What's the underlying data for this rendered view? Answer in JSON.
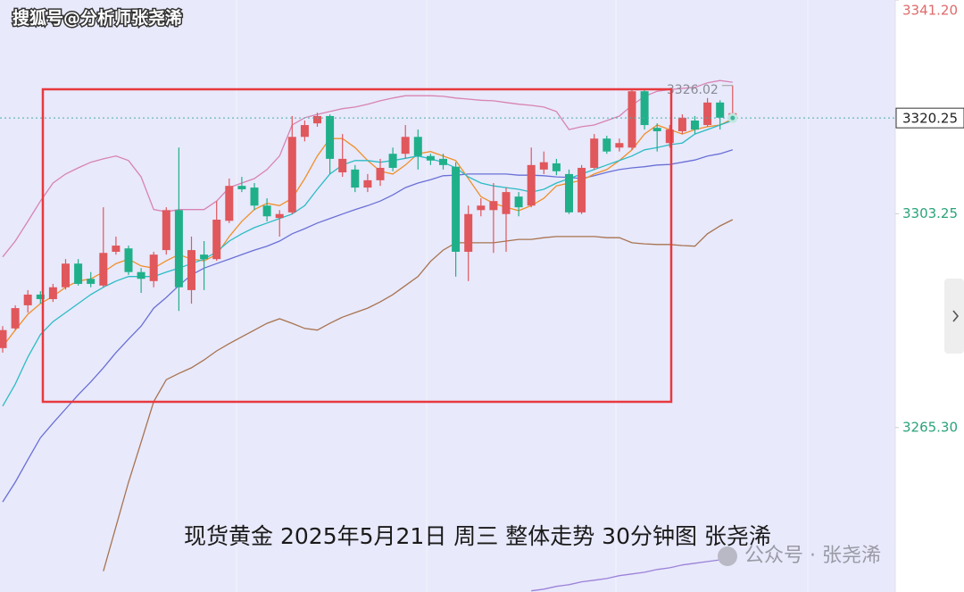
{
  "header": {
    "watermark": "搜狐号@分析师张尧浠"
  },
  "chart_data": {
    "type": "candlestick",
    "caption": "现货黄金 2025年5月21日 周三 整体走势 30分钟图 张尧浠",
    "ylim": [
      3236.1,
      3341.2
    ],
    "yticks": [
      {
        "value": 3341.2,
        "label": "3341.20"
      },
      {
        "value": 3303.25,
        "label": "3303.25"
      },
      {
        "value": 3265.3,
        "label": "3265.30"
      }
    ],
    "last_price": 3320.25,
    "annotation": "3326.02",
    "up_color": "#e0575c",
    "down_color": "#1fb08a",
    "candles": {
      "open": [
        3279.4,
        3282.9,
        3287.0,
        3288.9,
        3288.1,
        3290.2,
        3294.4,
        3291.7,
        3290.5,
        3296.5,
        3297.1,
        3292.9,
        3291.3,
        3296.8,
        3303.9,
        3289.7,
        3296.0,
        3295.2,
        3302.0,
        3308.2,
        3307.9,
        3304.7,
        3302.5,
        3303.5,
        3316.9,
        3319.3,
        3320.6,
        3310.6,
        3311.1,
        3307.9,
        3309.2,
        3313.9,
        3313.9,
        3316.9,
        3313.5,
        3313.0,
        3311.6,
        3296.5,
        3303.9,
        3303.9,
        3303.2,
        3306.3,
        3304.7,
        3311.1,
        3312.2,
        3310.3,
        3303.5,
        3311.4,
        3316.6,
        3315.0,
        3315.0,
        3325.0,
        3318.5,
        3315.8,
        3317.9,
        3319.8,
        3319.0,
        3323.0,
        3320.6
      ],
      "high": [
        3283.3,
        3287.0,
        3289.7,
        3289.5,
        3290.8,
        3295.2,
        3295.2,
        3292.9,
        3304.4,
        3299.2,
        3297.6,
        3293.6,
        3296.5,
        3304.4,
        3315.0,
        3299.2,
        3298.4,
        3305.5,
        3309.5,
        3309.8,
        3308.7,
        3306.0,
        3303.9,
        3320.6,
        3319.8,
        3321.2,
        3320.9,
        3317.4,
        3311.9,
        3310.3,
        3313.0,
        3315.0,
        3319.0,
        3318.2,
        3313.9,
        3313.9,
        3312.4,
        3304.7,
        3306.0,
        3308.7,
        3307.9,
        3307.1,
        3315.0,
        3314.3,
        3313.0,
        3311.1,
        3311.9,
        3317.4,
        3317.1,
        3316.6,
        3325.3,
        3325.3,
        3319.3,
        3319.0,
        3320.9,
        3320.6,
        3323.8,
        3323.4,
        3326.02
      ],
      "low": [
        3278.6,
        3282.6,
        3285.7,
        3287.3,
        3287.6,
        3289.8,
        3290.5,
        3290.2,
        3290.2,
        3296.0,
        3292.4,
        3289.2,
        3290.2,
        3296.0,
        3286.0,
        3287.3,
        3289.7,
        3294.9,
        3301.6,
        3307.1,
        3303.9,
        3301.9,
        3299.2,
        3303.2,
        3316.1,
        3318.7,
        3310.3,
        3309.8,
        3307.1,
        3307.1,
        3308.2,
        3310.8,
        3313.0,
        3311.1,
        3311.9,
        3311.1,
        3292.1,
        3291.3,
        3302.8,
        3296.3,
        3296.5,
        3302.8,
        3304.4,
        3310.3,
        3310.1,
        3303.2,
        3303.2,
        3311.1,
        3313.9,
        3314.3,
        3314.6,
        3318.2,
        3314.3,
        3315.0,
        3317.4,
        3317.4,
        3318.7,
        3318.2,
        3320.3
      ],
      "close": [
        3282.6,
        3286.5,
        3288.9,
        3288.1,
        3290.2,
        3294.4,
        3290.8,
        3290.8,
        3296.3,
        3297.6,
        3292.9,
        3291.7,
        3296.0,
        3303.9,
        3290.2,
        3296.8,
        3295.2,
        3302.2,
        3308.2,
        3307.6,
        3304.7,
        3302.8,
        3303.2,
        3316.9,
        3319.0,
        3320.6,
        3313.0,
        3313.0,
        3307.9,
        3309.2,
        3311.4,
        3311.4,
        3316.9,
        3313.5,
        3312.7,
        3311.9,
        3296.5,
        3303.2,
        3304.7,
        3305.5,
        3307.1,
        3304.4,
        3311.9,
        3312.4,
        3310.8,
        3303.5,
        3311.4,
        3316.6,
        3314.3,
        3315.8,
        3325.0,
        3319.0,
        3317.9,
        3318.2,
        3320.3,
        3318.2,
        3323.0,
        3320.3,
        3321.1
      ]
    },
    "lines": [
      {
        "color": "#d883b3",
        "values": [
          3295.6,
          3298.4,
          3301.9,
          3305.5,
          3308.7,
          3310.3,
          3311.4,
          3312.4,
          3313.0,
          3313.5,
          3312.7,
          3309.8,
          3304.0,
          3303.6,
          3304.0,
          3304.0,
          3304.0,
          3305.5,
          3307.9,
          3308.7,
          3309.5,
          3311.1,
          3313.5,
          3319.0,
          3320.3,
          3320.9,
          3321.4,
          3321.9,
          3322.2,
          3322.7,
          3323.3,
          3323.8,
          3324.2,
          3324.2,
          3324.2,
          3324.1,
          3323.8,
          3323.6,
          3323.4,
          3323.3,
          3323.0,
          3322.7,
          3322.5,
          3322.2,
          3321.4,
          3318.2,
          3318.7,
          3319.0,
          3319.8,
          3320.6,
          3322.5,
          3324.1,
          3325.0,
          3325.3,
          3325.5,
          3325.7,
          3326.5,
          3326.9,
          3326.6
        ]
      },
      {
        "color": "#6a70d6",
        "values": [
          3252.1,
          3255.6,
          3259.6,
          3263.5,
          3266.1,
          3268.6,
          3271.1,
          3273.4,
          3275.9,
          3278.6,
          3281.0,
          3283.3,
          3286.5,
          3288.4,
          3290.5,
          3292.4,
          3293.6,
          3294.4,
          3295.2,
          3296.0,
          3296.8,
          3297.5,
          3298.4,
          3299.7,
          3300.6,
          3301.6,
          3302.4,
          3303.2,
          3304.0,
          3304.7,
          3305.5,
          3306.6,
          3307.9,
          3308.7,
          3309.3,
          3310.0,
          3310.1,
          3310.3,
          3310.3,
          3310.3,
          3310.3,
          3310.1,
          3310.1,
          3310.0,
          3309.8,
          3309.7,
          3309.5,
          3310.0,
          3310.6,
          3311.1,
          3311.4,
          3311.6,
          3311.9,
          3312.0,
          3312.4,
          3312.8,
          3313.5,
          3313.9,
          3314.6
        ]
      },
      {
        "color": "#a8734f",
        "values": [
          null,
          null,
          null,
          null,
          null,
          null,
          null,
          null,
          3239.8,
          3247.7,
          3255.6,
          3262.7,
          3269.9,
          3273.8,
          3274.9,
          3275.9,
          3277.3,
          3278.9,
          3280.2,
          3281.4,
          3282.6,
          3283.8,
          3284.6,
          3283.8,
          3282.9,
          3282.6,
          3283.8,
          3284.9,
          3285.7,
          3286.5,
          3287.6,
          3288.9,
          3290.5,
          3292.1,
          3294.8,
          3296.8,
          3298.1,
          3298.1,
          3298.1,
          3298.1,
          3298.4,
          3298.7,
          3298.7,
          3299.0,
          3299.2,
          3299.2,
          3299.2,
          3299.2,
          3299.0,
          3299.0,
          3298.1,
          3297.9,
          3297.8,
          3297.8,
          3297.6,
          3297.5,
          3299.7,
          3301.1,
          3302.2
        ]
      },
      {
        "color": "#f0902a",
        "values": [
          3279.7,
          3282.6,
          3285.4,
          3287.3,
          3288.6,
          3290.2,
          3291.3,
          3291.7,
          3292.9,
          3294.4,
          3295.2,
          3294.0,
          3293.6,
          3294.9,
          3296.0,
          3295.2,
          3294.9,
          3296.0,
          3299.2,
          3301.9,
          3304.0,
          3305.1,
          3304.7,
          3306.0,
          3309.5,
          3313.5,
          3316.6,
          3316.6,
          3315.0,
          3312.7,
          3310.8,
          3310.3,
          3311.9,
          3313.9,
          3314.3,
          3313.5,
          3312.7,
          3309.5,
          3306.3,
          3305.1,
          3304.4,
          3303.8,
          3304.7,
          3306.0,
          3308.2,
          3308.7,
          3309.2,
          3310.3,
          3311.1,
          3312.7,
          3314.6,
          3317.4,
          3319.0,
          3318.2,
          3317.4,
          3318.2,
          3318.7,
          3319.0,
          3320.1
        ]
      },
      {
        "color": "#2bbcc4",
        "values": [
          3269.1,
          3273.0,
          3277.8,
          3281.8,
          3284.1,
          3285.7,
          3287.3,
          3288.9,
          3290.2,
          3291.3,
          3292.1,
          3292.1,
          3292.1,
          3292.9,
          3293.6,
          3294.4,
          3295.2,
          3296.5,
          3298.4,
          3299.7,
          3300.8,
          3301.6,
          3302.4,
          3303.2,
          3304.7,
          3307.6,
          3310.3,
          3311.9,
          3312.7,
          3312.7,
          3312.4,
          3312.7,
          3313.1,
          3313.5,
          3313.0,
          3312.4,
          3311.4,
          3309.8,
          3308.7,
          3308.2,
          3307.9,
          3307.6,
          3307.1,
          3307.6,
          3308.7,
          3309.5,
          3310.3,
          3311.1,
          3311.9,
          3312.7,
          3313.5,
          3314.6,
          3315.0,
          3315.5,
          3315.8,
          3317.4,
          3318.2,
          3319.0,
          3319.8
        ]
      },
      {
        "color": "#9c82d8",
        "values": [
          null,
          null,
          null,
          null,
          null,
          null,
          null,
          null,
          null,
          null,
          null,
          null,
          null,
          null,
          null,
          null,
          null,
          null,
          null,
          null,
          null,
          null,
          null,
          null,
          null,
          null,
          null,
          null,
          null,
          null,
          null,
          null,
          null,
          null,
          null,
          null,
          null,
          null,
          null,
          null,
          null,
          null,
          3236.3,
          3236.6,
          3237.1,
          3237.4,
          3237.9,
          3238.2,
          3238.5,
          3239.0,
          3239.3,
          3239.6,
          3240.1,
          3240.4,
          3240.9,
          3241.2,
          3241.5,
          3241.8,
          3242.1
        ]
      }
    ]
  },
  "footer": {
    "watermark": "公众号 · 张尧浠"
  }
}
